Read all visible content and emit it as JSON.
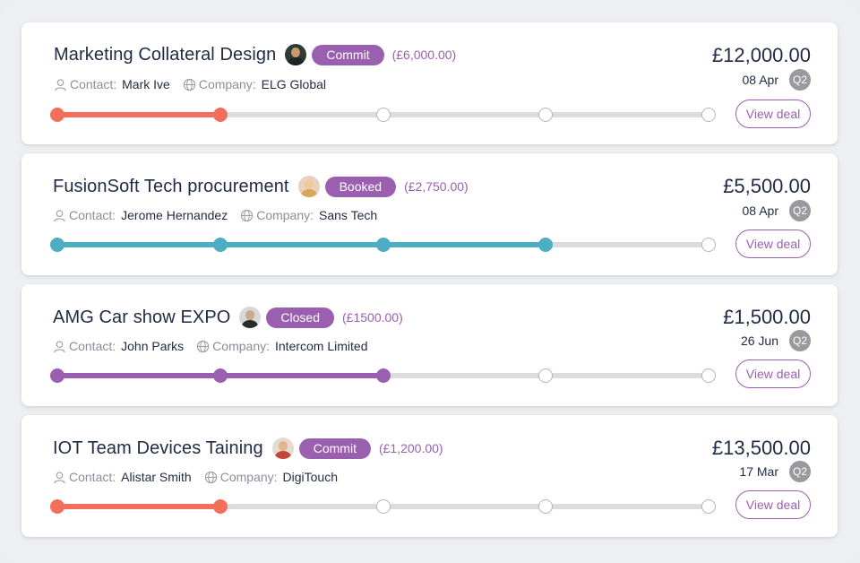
{
  "deals": [
    {
      "title": "Marketing Collateral Design",
      "status": "Commit",
      "sub_amount": "(£6,000.00)",
      "contact_label": "Contact:",
      "contact": "Mark Ive",
      "company_label": "Company:",
      "company": "ELG Global",
      "amount": "£12,000.00",
      "date": "08 Apr",
      "quarter": "Q2",
      "button": "View deal",
      "progress_color": "#f36f5c",
      "progress_steps_done": 2,
      "progress_steps_total": 5,
      "avatar_icon": "avatar-man-dark"
    },
    {
      "title": "FusionSoft Tech procurement",
      "status": "Booked",
      "sub_amount": "(£2,750.00)",
      "contact_label": "Contact:",
      "contact": "Jerome Hernandez",
      "company_label": "Company:",
      "company": "Sans Tech",
      "amount": "£5,500.00",
      "date": "08 Apr",
      "quarter": "Q2",
      "button": "View deal",
      "progress_color": "#4cadc3",
      "progress_steps_done": 4,
      "progress_steps_total": 5,
      "avatar_icon": "avatar-woman-blonde"
    },
    {
      "title": "AMG Car show EXPO",
      "status": "Closed",
      "sub_amount": "(£1500.00)",
      "contact_label": "Contact:",
      "contact": "John Parks",
      "company_label": "Company:",
      "company": "Intercom Limited",
      "amount": "£1,500.00",
      "date": "26 Jun",
      "quarter": "Q2",
      "button": "View deal",
      "progress_color": "#9b5fb0",
      "progress_steps_done": 3,
      "progress_steps_total": 5,
      "avatar_icon": "avatar-man-glasses"
    },
    {
      "title": "IOT Team Devices Taining",
      "status": "Commit",
      "sub_amount": "(£1,200.00)",
      "contact_label": "Contact:",
      "contact": "Alistar Smith",
      "company_label": "Company:",
      "company": "DigiTouch",
      "amount": "£13,500.00",
      "date": "17 Mar",
      "quarter": "Q2",
      "button": "View deal",
      "progress_color": "#f36f5c",
      "progress_steps_done": 2,
      "progress_steps_total": 5,
      "avatar_icon": "avatar-man-bald"
    }
  ],
  "colors": {
    "accent_purple": "#9b5fb0",
    "text_dark": "#1f2a44",
    "text_muted": "#8a8f99"
  }
}
